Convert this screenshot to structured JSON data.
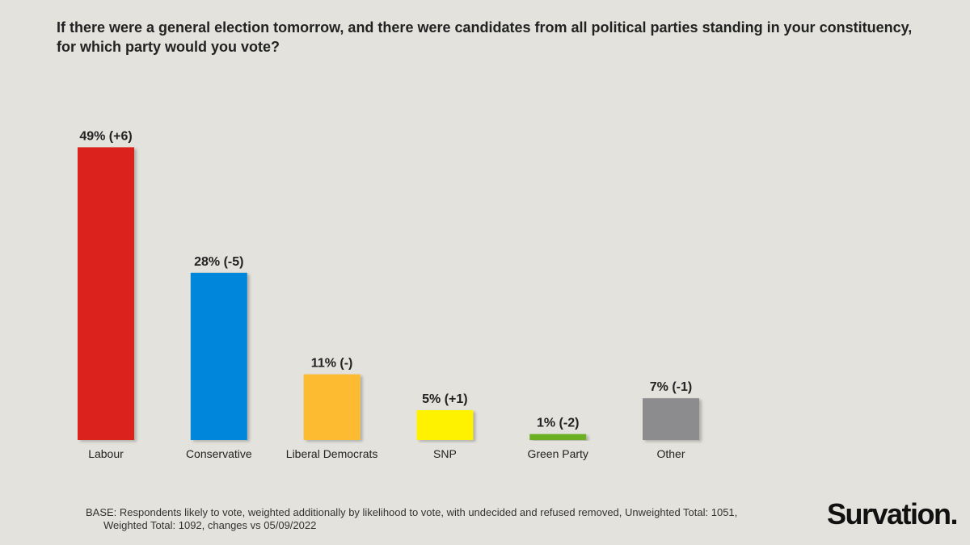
{
  "chart_data": {
    "type": "bar",
    "title": "If there were a general election tomorrow, and there were candidates from all political parties standing in your constituency, for which party would you vote?",
    "categories": [
      "Labour",
      "Conservative",
      "Liberal Democrats",
      "SNP",
      "Green Party",
      "Other"
    ],
    "values": [
      49,
      28,
      11,
      5,
      1,
      7
    ],
    "changes": [
      "+6",
      "-5",
      "-",
      "+1",
      "-2",
      "-1"
    ],
    "data_labels": [
      "49% (+6)",
      "28% (-5)",
      "11% (-)",
      "5% (+1)",
      "1% (-2)",
      "7% (-1)"
    ],
    "colors": [
      "#dc241f",
      "#0087dc",
      "#fdbb30",
      "#fff200",
      "#6ab023",
      "#8c8c8e"
    ],
    "unit": "%",
    "ylim": [
      0,
      50
    ],
    "xlabel": "",
    "ylabel": "",
    "grid": false
  },
  "footnote": {
    "line1": "BASE: Respondents likely to vote, weighted additionally  by likelihood to vote, with undecided and refused removed, Unweighted Total: 1051,",
    "line2": "Weighted Total: 1092, changes vs 05/09/2022"
  },
  "brand": {
    "logo_text": "Survation."
  }
}
